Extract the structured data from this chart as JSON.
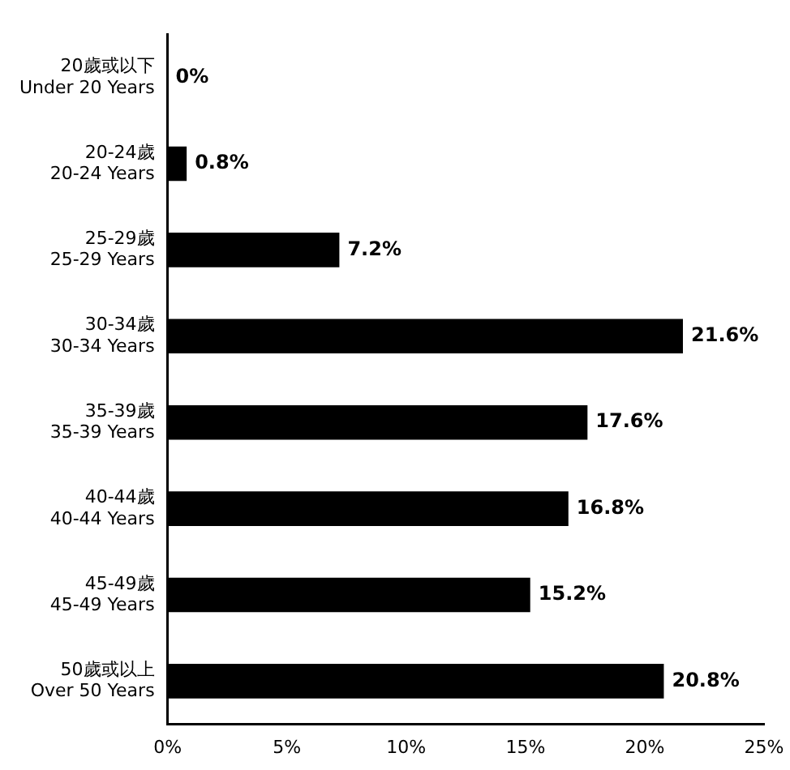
{
  "chart_data": {
    "type": "bar",
    "orientation": "horizontal",
    "categories": [
      "20歲或以下\nUnder 20 Years",
      "20-24歲\n20-24 Years",
      "25-29歲\n25-29 Years",
      "30-34歲\n30-34 Years",
      "35-39歲\n35-39 Years",
      "40-44歲\n40-44 Years",
      "45-49歲\n45-49 Years",
      "50歲或以上\nOver 50 Years"
    ],
    "values": [
      0,
      0.8,
      7.2,
      21.6,
      17.6,
      16.8,
      15.2,
      20.8
    ],
    "value_labels": [
      "0%",
      "0.8%",
      "7.2%",
      "21.6%",
      "17.6%",
      "16.8%",
      "15.2%",
      "20.8%"
    ],
    "color": "#000000",
    "xlim": [
      0,
      25
    ],
    "xticks": [
      {
        "value": 0,
        "label": "0%"
      },
      {
        "value": 5,
        "label": "5%"
      },
      {
        "value": 10,
        "label": "10%"
      },
      {
        "value": 15,
        "label": "15%"
      },
      {
        "value": 20,
        "label": "20%"
      },
      {
        "value": 25,
        "label": "25%"
      }
    ],
    "grid": false,
    "legend": false
  }
}
